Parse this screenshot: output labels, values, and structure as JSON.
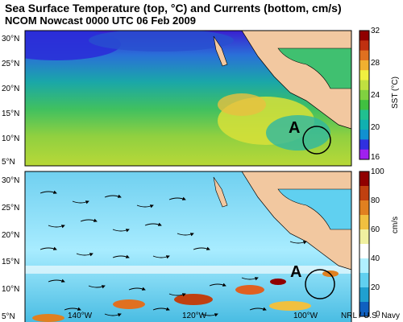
{
  "title": "Sea Surface Temperature (top, °C) and Currents (bottom, cm/s)",
  "subtitle": "NCOM Nowcast 0000 UTC  06 Feb 2009",
  "credit": "NRL / U.S. Navy",
  "top_panel": {
    "lat_ticks": [
      "30°N",
      "25°N",
      "20°N",
      "15°N",
      "10°N",
      "5°N"
    ],
    "annotation": "A",
    "colorbar": {
      "label": "SST (°C)",
      "ticks": [
        "32",
        "28",
        "24",
        "20",
        "16"
      ],
      "colors": [
        "#a020f0",
        "#3030e0",
        "#1090d0",
        "#10b0b0",
        "#20c090",
        "#40c040",
        "#80d040",
        "#c0e040",
        "#f0f040",
        "#f0b030",
        "#e07020",
        "#c03010",
        "#900000"
      ]
    }
  },
  "bottom_panel": {
    "lat_ticks": [
      "30°N",
      "25°N",
      "20°N",
      "15°N",
      "10°N",
      "5°N"
    ],
    "lon_ticks": [
      "140°W",
      "120°W",
      "100°W"
    ],
    "annotation": "A",
    "colorbar": {
      "label": "cm/s",
      "ticks": [
        "100",
        "80",
        "60",
        "40",
        "20",
        "0"
      ],
      "colors": [
        "#1060c0",
        "#20a0d0",
        "#60d0f0",
        "#b0f0ff",
        "#ffffff",
        "#f0f0a0",
        "#f0c040",
        "#e08020",
        "#c04010",
        "#900000"
      ]
    }
  },
  "colors": {
    "land": "#f2c8a0",
    "water_hot": "#e8e040",
    "water_cold": "#2040c0"
  }
}
